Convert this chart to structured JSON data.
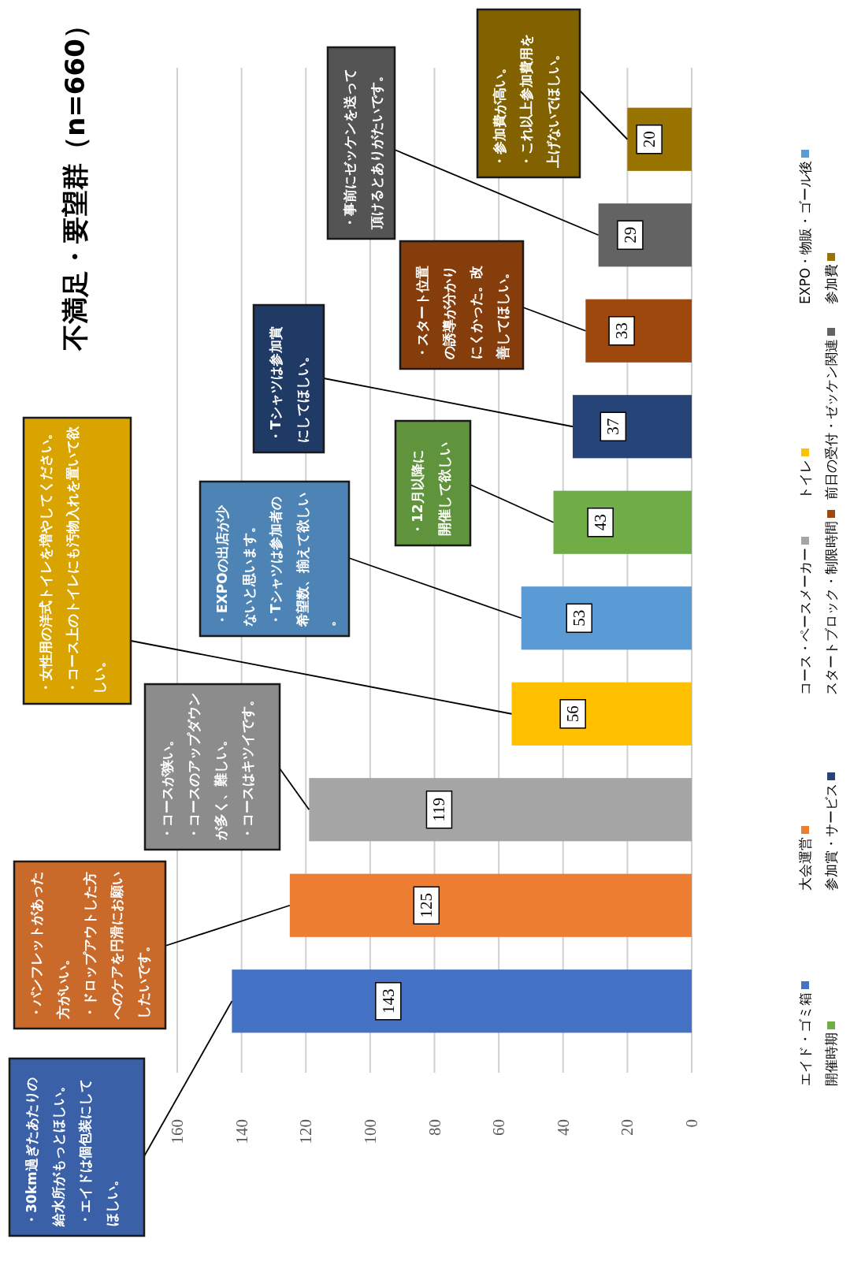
{
  "chart_data": {
    "type": "bar",
    "orientation": "horizontal",
    "title": "不満足・要望群（n=660）",
    "categories": [
      null,
      null,
      null,
      null,
      null,
      null,
      null,
      null,
      null,
      null
    ],
    "series": [
      {
        "name": "参加費",
        "color": "#997300",
        "values": [
          20,
          null,
          null,
          null,
          null,
          null,
          null,
          null,
          null,
          null
        ]
      },
      {
        "name": "前日の受付・ゼッケン関連",
        "color": "#636363",
        "values": [
          null,
          29,
          null,
          null,
          null,
          null,
          null,
          null,
          null,
          null
        ]
      },
      {
        "name": "スタートブロック・制限時間",
        "color": "#9e480e",
        "values": [
          null,
          null,
          33,
          null,
          null,
          null,
          null,
          null,
          null,
          null
        ]
      },
      {
        "name": "参加賞・サービス",
        "color": "#264478",
        "values": [
          null,
          null,
          null,
          37,
          null,
          null,
          null,
          null,
          null,
          null
        ]
      },
      {
        "name": "開催時期",
        "color": "#70ad47",
        "values": [
          null,
          null,
          null,
          null,
          43,
          null,
          null,
          null,
          null,
          null
        ]
      },
      {
        "name": "EXPO・物販・ゴール後",
        "color": "#5b9bd5",
        "values": [
          null,
          null,
          null,
          null,
          null,
          53,
          null,
          null,
          null,
          null
        ]
      },
      {
        "name": "トイレ",
        "color": "#ffc000",
        "values": [
          null,
          null,
          null,
          null,
          null,
          null,
          56,
          null,
          null,
          null
        ]
      },
      {
        "name": "コース・ペースメーカー",
        "color": "#a5a5a5",
        "values": [
          null,
          null,
          null,
          null,
          null,
          null,
          null,
          119,
          null,
          null
        ]
      },
      {
        "name": "大会運営",
        "color": "#ed7d31",
        "values": [
          null,
          null,
          null,
          null,
          null,
          null,
          null,
          null,
          125,
          null
        ]
      },
      {
        "name": "エイド・ゴミ箱",
        "color": "#4472c4",
        "values": [
          null,
          null,
          null,
          null,
          null,
          null,
          null,
          null,
          null,
          143
        ]
      }
    ],
    "xlim": [
      160,
      0
    ],
    "xticks": [
      160,
      140,
      120,
      100,
      80,
      60,
      40,
      20,
      0
    ],
    "grid": "x",
    "legend": "right",
    "data_labels": true,
    "annotations": [
      "・参加費が高い。・これ以上参加費用を上げないでほしい。",
      "・事前にゼッケンを送って頂けるとありがたいです。",
      "・スタート位置の誘導が分かりにくかった。改善してほしい。",
      "・Tシャツは参加賞にしてほしい。",
      "・12月以降に開催して欲しい。",
      "・EXPOの出店が少ないと思います。・Tシャツは参加者の希望数、揃えて欲しい。",
      "・女性用の洋式トイレを増やしてください。・コース上のトイレにも汚物入れを置いて欲しい。",
      "・コースが狭い。・コースのアップダウンが多く、難しい。・コースはキツイです。",
      "・パンフレットがあった方がいい。・ドロップアウトした方へのケアを円滑にお願いしたいです。",
      "・30km過ぎたあたりの給水所がもっとほしい。・エイドは個包装にしてほしい。"
    ]
  }
}
